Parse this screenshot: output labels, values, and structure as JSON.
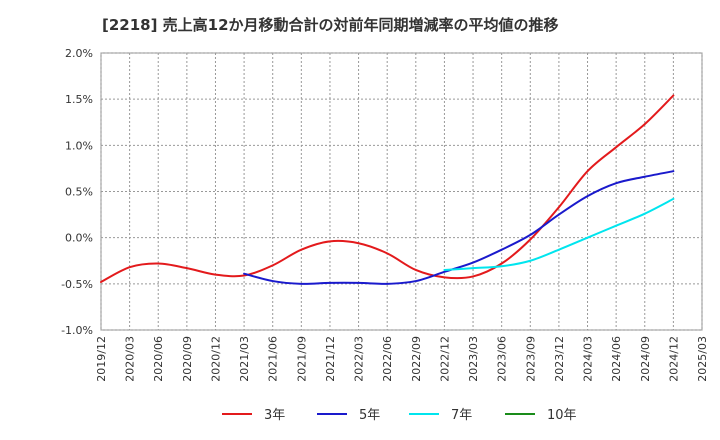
{
  "chart_data": {
    "type": "line",
    "title": "[2218]  売上高12か月移動合計の対前年同期増減率の平均値の推移",
    "x_ticks": [
      "2019/12",
      "2020/03",
      "2020/06",
      "2020/09",
      "2020/12",
      "2021/03",
      "2021/06",
      "2021/09",
      "2021/12",
      "2022/03",
      "2022/06",
      "2022/09",
      "2022/12",
      "2023/03",
      "2023/06",
      "2023/09",
      "2023/12",
      "2024/03",
      "2024/06",
      "2024/09",
      "2024/12",
      "2025/03"
    ],
    "y_ticks": [
      -1.0,
      -0.5,
      0.0,
      0.5,
      1.0,
      1.5,
      2.0
    ],
    "y_tick_labels": [
      "-1.0%",
      "-0.5%",
      "0.0%",
      "0.5%",
      "1.0%",
      "1.5%",
      "2.0%"
    ],
    "ylim": [
      -1.0,
      2.0
    ],
    "grid": true,
    "legend_position": "bottom",
    "series": [
      {
        "name": "3年",
        "color": "#e31a1c",
        "points": [
          [
            "2019/12",
            -0.48
          ],
          [
            "2020/03",
            -0.32
          ],
          [
            "2020/06",
            -0.28
          ],
          [
            "2020/09",
            -0.33
          ],
          [
            "2020/12",
            -0.4
          ],
          [
            "2021/03",
            -0.41
          ],
          [
            "2021/06",
            -0.3
          ],
          [
            "2021/09",
            -0.13
          ],
          [
            "2021/12",
            -0.04
          ],
          [
            "2022/03",
            -0.06
          ],
          [
            "2022/06",
            -0.17
          ],
          [
            "2022/09",
            -0.35
          ],
          [
            "2022/12",
            -0.43
          ],
          [
            "2023/03",
            -0.42
          ],
          [
            "2023/06",
            -0.28
          ],
          [
            "2023/09",
            -0.02
          ],
          [
            "2023/12",
            0.33
          ],
          [
            "2024/03",
            0.72
          ],
          [
            "2024/06",
            0.98
          ],
          [
            "2024/09",
            1.23
          ],
          [
            "2024/12",
            1.54
          ]
        ]
      },
      {
        "name": "5年",
        "color": "#1a1acc",
        "points": [
          [
            "2021/03",
            -0.39
          ],
          [
            "2021/06",
            -0.47
          ],
          [
            "2021/09",
            -0.5
          ],
          [
            "2021/12",
            -0.49
          ],
          [
            "2022/03",
            -0.49
          ],
          [
            "2022/06",
            -0.5
          ],
          [
            "2022/09",
            -0.47
          ],
          [
            "2022/12",
            -0.37
          ],
          [
            "2023/03",
            -0.27
          ],
          [
            "2023/06",
            -0.13
          ],
          [
            "2023/09",
            0.03
          ],
          [
            "2023/12",
            0.25
          ],
          [
            "2024/03",
            0.45
          ],
          [
            "2024/06",
            0.59
          ],
          [
            "2024/09",
            0.66
          ],
          [
            "2024/12",
            0.72
          ]
        ]
      },
      {
        "name": "7年",
        "color": "#00e5ee",
        "points": [
          [
            "2022/12",
            -0.35
          ],
          [
            "2023/03",
            -0.33
          ],
          [
            "2023/06",
            -0.31
          ],
          [
            "2023/09",
            -0.25
          ],
          [
            "2023/12",
            -0.13
          ],
          [
            "2024/03",
            0.0
          ],
          [
            "2024/06",
            0.13
          ],
          [
            "2024/09",
            0.26
          ],
          [
            "2024/12",
            0.42
          ]
        ]
      },
      {
        "name": "10年",
        "color": "#1a8c1a",
        "points": []
      }
    ]
  }
}
